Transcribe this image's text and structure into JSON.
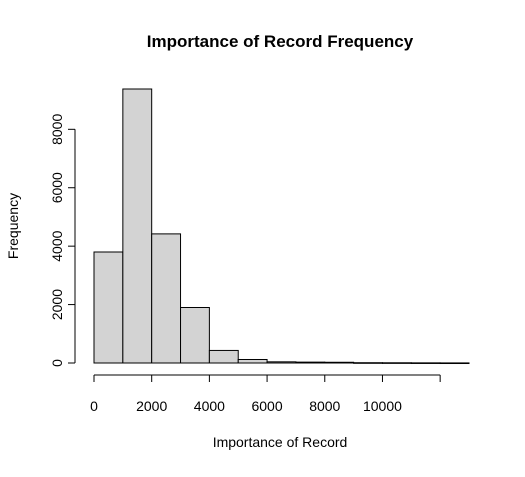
{
  "chart_data": {
    "type": "bar",
    "chart_kind": "histogram",
    "title": "Importance of Record Frequency",
    "xlabel": "Importance of Record",
    "ylabel": "Frequency",
    "bins": [
      {
        "start": 0,
        "end": 1000,
        "value": 3800
      },
      {
        "start": 1000,
        "end": 2000,
        "value": 9380
      },
      {
        "start": 2000,
        "end": 3000,
        "value": 4420
      },
      {
        "start": 3000,
        "end": 4000,
        "value": 1900
      },
      {
        "start": 4000,
        "end": 5000,
        "value": 430
      },
      {
        "start": 5000,
        "end": 6000,
        "value": 120
      },
      {
        "start": 6000,
        "end": 7000,
        "value": 40
      },
      {
        "start": 7000,
        "end": 8000,
        "value": 30
      },
      {
        "start": 8000,
        "end": 9000,
        "value": 25
      },
      {
        "start": 9000,
        "end": 10000,
        "value": 10
      },
      {
        "start": 10000,
        "end": 11000,
        "value": 8
      },
      {
        "start": 11000,
        "end": 12000,
        "value": 5
      },
      {
        "start": 12000,
        "end": 13000,
        "value": 3
      }
    ],
    "xlim": [
      0,
      12000
    ],
    "ylim": [
      0,
      9380
    ],
    "x_ticks": [
      0,
      2000,
      4000,
      6000,
      8000,
      10000,
      12000
    ],
    "x_tick_labels": [
      "0",
      "2000",
      "4000",
      "6000",
      "8000",
      "10000",
      ""
    ],
    "y_ticks": [
      0,
      2000,
      4000,
      6000,
      8000
    ],
    "y_tick_labels": [
      "0",
      "2000",
      "4000",
      "6000",
      "8000"
    ],
    "grid": false,
    "legend": "none",
    "colors": {
      "bar_fill": "#d3d3d3",
      "bar_stroke": "#000000",
      "axis": "#000000"
    }
  }
}
